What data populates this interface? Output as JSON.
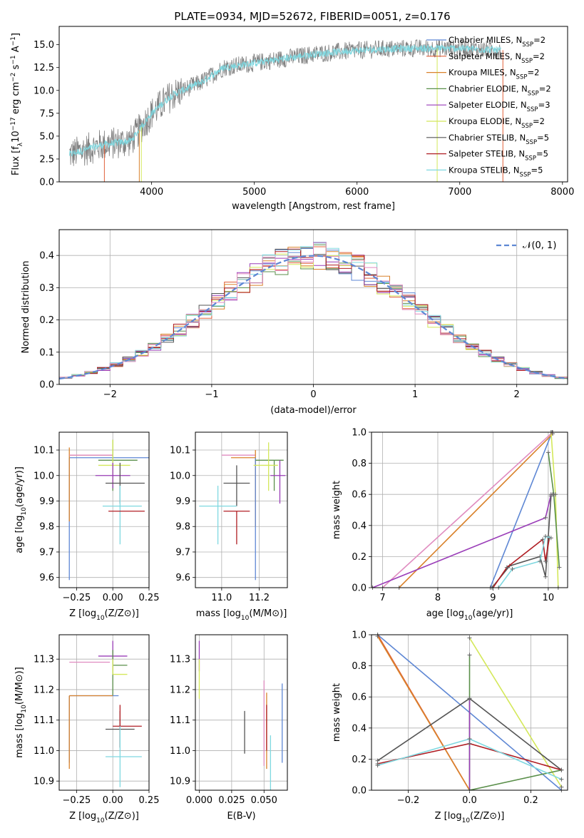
{
  "title": "PLATE=0934, MJD=52672, FIBERID=0051, z=0.176",
  "colors": {
    "Chabrier MILES": "#5e87d4",
    "Salpeter MILES": "#e0603a",
    "Kroupa MILES": "#d9822b",
    "Chabrier ELODIE": "#5a8f4a",
    "Salpeter ELODIE": "#9a3db8",
    "Kroupa ELODIE": "#d4e85a",
    "Chabrier STELIB": "#555555",
    "Salpeter STELIB": "#b01e24",
    "Kroupa STELIB": "#7fd8e0",
    "pink": "#e08cc0",
    "data": "#808080",
    "normal": "#5e87d4"
  },
  "chart_data": [
    {
      "id": "spectrum",
      "type": "line",
      "xlabel": "wavelength [Angstrom, rest frame]",
      "ylabel_parts": [
        "Flux [f",
        "λ",
        "10",
        "−17",
        " erg cm",
        "−2",
        " s",
        "−1",
        " A",
        "−1",
        "]"
      ],
      "xlim": [
        3100,
        8050
      ],
      "ylim": [
        0,
        17
      ],
      "xticks": [
        4000,
        5000,
        6000,
        7000,
        8000
      ],
      "yticks": [
        0.0,
        2.5,
        5.0,
        7.5,
        10.0,
        12.5,
        15.0
      ],
      "ytick_labels": [
        "0.0",
        "2.5",
        "5.0",
        "7.5",
        "10.0",
        "12.5",
        "15.0"
      ],
      "grid": false,
      "legend_position": "upper-right",
      "legend": [
        {
          "name": "Chabrier MILES, N",
          "sub": "SSP",
          "tail": "=2",
          "color": "#5e87d4"
        },
        {
          "name": "Salpeter MILES, N",
          "sub": "SSP",
          "tail": "=2",
          "color": "#e0603a"
        },
        {
          "name": "Kroupa MILES, N",
          "sub": "SSP",
          "tail": "=2",
          "color": "#d9822b"
        },
        {
          "name": "Chabrier ELODIE, N",
          "sub": "SSP",
          "tail": "=2",
          "color": "#5a8f4a"
        },
        {
          "name": "Salpeter ELODIE, N",
          "sub": "SSP",
          "tail": "=3",
          "color": "#9a3db8"
        },
        {
          "name": "Kroupa ELODIE, N",
          "sub": "SSP",
          "tail": "=2",
          "color": "#d4e85a"
        },
        {
          "name": "Chabrier STELIB, N",
          "sub": "SSP",
          "tail": "=5",
          "color": "#555555"
        },
        {
          "name": "Salpeter STELIB, N",
          "sub": "SSP",
          "tail": "=5",
          "color": "#b01e24"
        },
        {
          "name": "Kroupa STELIB, N",
          "sub": "SSP",
          "tail": "=5",
          "color": "#7fd8e0"
        }
      ],
      "continuum": {
        "x": [
          3200,
          3500,
          3800,
          4000,
          4200,
          4500,
          4700,
          5000,
          5300,
          5600,
          5900,
          6200,
          6500,
          6800,
          7000,
          7200,
          7400
        ],
        "y": [
          3.0,
          4.0,
          4.5,
          7.5,
          9.5,
          11.0,
          12.5,
          13.0,
          13.5,
          14.0,
          14.3,
          14.5,
          14.6,
          14.6,
          14.6,
          14.5,
          14.4
        ]
      },
      "model_edges": [
        {
          "color": "#e0603a",
          "x": 3540
        },
        {
          "color": "#d9822b",
          "x": 3880
        },
        {
          "color": "#d4e85a",
          "x": 3900
        },
        {
          "color": "#d4e85a",
          "x": 6780
        },
        {
          "color": "#e0603a",
          "x": 7420
        }
      ]
    },
    {
      "id": "residuals",
      "type": "histogram",
      "xlabel": "(data-model)/error",
      "ylabel": "Normed distribution",
      "xlim": [
        -2.5,
        2.5
      ],
      "ylim": [
        0,
        0.48
      ],
      "xticks": [
        -2,
        -1,
        0,
        1,
        2
      ],
      "xtick_labels": [
        "−2",
        "−1",
        "0",
        "1",
        "2"
      ],
      "yticks": [
        0.0,
        0.1,
        0.2,
        0.3,
        0.4
      ],
      "ytick_labels": [
        "0.0",
        "0.1",
        "0.2",
        "0.3",
        "0.4"
      ],
      "grid": true,
      "legend_position": "upper-right",
      "legend": [
        {
          "name": "𝒩(0, 1)",
          "style": "dashed",
          "color": "#5e87d4"
        }
      ],
      "bin_width": 0.125
    },
    {
      "id": "age_vs_Z",
      "type": "errorbar",
      "xlabel": "Z [log10(Z/Z⊙)]",
      "ylabel": "age [log10(age/yr)]",
      "xlim": [
        -0.37,
        0.25
      ],
      "ylim": [
        9.56,
        10.17
      ],
      "xticks": [
        -0.25,
        0.0,
        0.25
      ],
      "xtick_labels": [
        "−0.25",
        "0.00",
        "0.25"
      ],
      "yticks": [
        9.6,
        9.7,
        9.8,
        9.9,
        10.0,
        10.1
      ],
      "ytick_labels": [
        "9.6",
        "9.7",
        "9.8",
        "9.9",
        "10.0",
        "10.1"
      ],
      "grid": true,
      "points": [
        {
          "color": "#5e87d4",
          "x": -0.3,
          "xerr": [
            0,
            0.6
          ],
          "y": 10.07,
          "yerr": [
            0.48,
            0.0
          ]
        },
        {
          "color": "#d9822b",
          "x": -0.3,
          "xerr": [
            0,
            0.3
          ],
          "y": 10.08,
          "yerr": [
            0.26,
            0.03
          ]
        },
        {
          "color": "#e08cc0",
          "x": -0.3,
          "xerr": [
            0,
            0.3
          ],
          "y": 10.08,
          "yerr": [
            0.0,
            0.0
          ]
        },
        {
          "color": "#5a8f4a",
          "x": 0.0,
          "xerr": [
            0.1,
            0.17
          ],
          "y": 10.06,
          "yerr": [
            0.12,
            0.08
          ]
        },
        {
          "color": "#d4e85a",
          "x": 0.0,
          "xerr": [
            0.1,
            0.12
          ],
          "y": 10.04,
          "yerr": [
            0.08,
            0.1
          ]
        },
        {
          "color": "#9a3db8",
          "x": 0.0,
          "xerr": [
            0.12,
            0.12
          ],
          "y": 10.0,
          "yerr": [
            0.05,
            0.05
          ]
        },
        {
          "color": "#555555",
          "x": 0.05,
          "xerr": [
            0.1,
            0.17
          ],
          "y": 9.97,
          "yerr": [
            0.08,
            0.08
          ]
        },
        {
          "color": "#7fd8e0",
          "x": 0.05,
          "xerr": [
            0.12,
            0.15
          ],
          "y": 9.88,
          "yerr": [
            0.15,
            0.08
          ]
        },
        {
          "color": "#b01e24",
          "x": 0.05,
          "xerr": [
            0.08,
            0.17
          ],
          "y": 9.86,
          "yerr": [
            0.0,
            0.0
          ]
        }
      ]
    },
    {
      "id": "age_vs_mass",
      "type": "errorbar",
      "xlabel": "mass [log10(M/M⊙)]",
      "xlim": [
        10.86,
        11.35
      ],
      "ylim": [
        9.56,
        10.17
      ],
      "xticks": [
        11.0,
        11.2
      ],
      "xtick_labels": [
        "11.0",
        "11.2"
      ],
      "yticks": [
        9.6,
        9.7,
        9.8,
        9.9,
        10.0,
        10.1
      ],
      "ytick_labels": [
        "9.6",
        "9.7",
        "9.8",
        "9.9",
        "10.0",
        "10.1"
      ],
      "grid": true,
      "points": [
        {
          "color": "#e08cc0",
          "x": 11.18,
          "xerr": [
            0.18,
            0.0
          ],
          "y": 10.08,
          "yerr": [
            0.0,
            0.0
          ]
        },
        {
          "color": "#d9822b",
          "x": 11.18,
          "xerr": [
            0.13,
            0.0
          ],
          "y": 10.07,
          "yerr": [
            0.27,
            0.03
          ]
        },
        {
          "color": "#5e87d4",
          "x": 11.18,
          "xerr": [
            0.0,
            0.0
          ],
          "y": 10.07,
          "yerr": [
            0.48,
            0.0
          ]
        },
        {
          "color": "#5a8f4a",
          "x": 11.28,
          "xerr": [
            0.1,
            0.05
          ],
          "y": 10.06,
          "yerr": [
            0.12,
            0.0
          ]
        },
        {
          "color": "#d4e85a",
          "x": 11.25,
          "xerr": [
            0.08,
            0.05
          ],
          "y": 10.04,
          "yerr": [
            0.1,
            0.09
          ]
        },
        {
          "color": "#9a3db8",
          "x": 11.31,
          "xerr": [
            0.05,
            0.03
          ],
          "y": 10.0,
          "yerr": [
            0.11,
            0.06
          ]
        },
        {
          "color": "#555555",
          "x": 11.08,
          "xerr": [
            0.07,
            0.07
          ],
          "y": 9.97,
          "yerr": [
            0.09,
            0.07
          ]
        },
        {
          "color": "#7fd8e0",
          "x": 10.98,
          "xerr": [
            0.1,
            0.1
          ],
          "y": 9.88,
          "yerr": [
            0.15,
            0.08
          ]
        },
        {
          "color": "#b01e24",
          "x": 11.08,
          "xerr": [
            0.07,
            0.07
          ],
          "y": 9.86,
          "yerr": [
            0.13,
            0.0
          ]
        }
      ]
    },
    {
      "id": "weight_vs_age",
      "type": "line",
      "xlabel": "age [log10(age/yr)]",
      "ylabel": "mass weight",
      "xlim": [
        6.8,
        10.35
      ],
      "ylim": [
        0,
        1
      ],
      "xticks": [
        7,
        8,
        9,
        10
      ],
      "xtick_labels": [
        "7",
        "8",
        "9",
        "10"
      ],
      "yticks": [
        0.0,
        0.2,
        0.4,
        0.6,
        0.8,
        1.0
      ],
      "ytick_labels": [
        "0.0",
        "0.2",
        "0.4",
        "0.6",
        "0.8",
        "1.0"
      ],
      "grid": true,
      "series": [
        {
          "color": "#5e87d4",
          "x": [
            8.95,
            10.07
          ],
          "y": [
            0.0,
            1.0
          ]
        },
        {
          "color": "#e08cc0",
          "x": [
            7.0,
            10.08
          ],
          "y": [
            0.0,
            1.0
          ]
        },
        {
          "color": "#d9822b",
          "x": [
            7.3,
            10.08
          ],
          "y": [
            0.0,
            0.99
          ]
        },
        {
          "color": "#9a3db8",
          "x": [
            6.82,
            9.95,
            10.05,
            10.08
          ],
          "y": [
            0.0,
            0.45,
            0.6,
            0.6
          ]
        },
        {
          "color": "#d4e85a",
          "x": [
            10.05,
            10.13,
            10.18
          ],
          "y": [
            1.0,
            0.6,
            0.0
          ]
        },
        {
          "color": "#5a8f4a",
          "x": [
            10.0,
            10.1,
            10.2
          ],
          "y": [
            0.87,
            0.6,
            0.13
          ]
        },
        {
          "color": "#555555",
          "x": [
            8.98,
            9.3,
            9.85,
            9.95,
            10.05
          ],
          "y": [
            0.0,
            0.14,
            0.2,
            0.07,
            0.59
          ]
        },
        {
          "color": "#b01e24",
          "x": [
            9.0,
            9.25,
            9.9,
            9.95,
            10.02
          ],
          "y": [
            0.0,
            0.13,
            0.31,
            0.17,
            0.32
          ]
        },
        {
          "color": "#7fd8e0",
          "x": [
            9.1,
            9.35,
            9.85,
            9.95,
            10.05
          ],
          "y": [
            0.0,
            0.12,
            0.17,
            0.33,
            0.32
          ]
        }
      ]
    },
    {
      "id": "mass_vs_Z",
      "type": "errorbar",
      "xlabel": "Z [log10(Z/Z⊙)]",
      "ylabel": "mass [log10(M/M⊙)]",
      "xlim": [
        -0.37,
        0.25
      ],
      "ylim": [
        10.87,
        11.38
      ],
      "xticks": [
        -0.25,
        0.0,
        0.25
      ],
      "xtick_labels": [
        "−0.25",
        "0.00",
        "0.25"
      ],
      "yticks": [
        10.9,
        11.0,
        11.1,
        11.2,
        11.3
      ],
      "ytick_labels": [
        "10.9",
        "11.0",
        "11.1",
        "11.2",
        "11.3"
      ],
      "grid": true,
      "points": [
        {
          "color": "#9a3db8",
          "x": 0.0,
          "xerr": [
            0.1,
            0.1
          ],
          "y": 11.31,
          "yerr": [
            0.05,
            0.05
          ]
        },
        {
          "color": "#e08cc0",
          "x": -0.3,
          "xerr": [
            0,
            0.28
          ],
          "y": 11.29,
          "yerr": [
            0.0,
            0.0
          ]
        },
        {
          "color": "#5a8f4a",
          "x": 0.0,
          "xerr": [
            0.0,
            0.1
          ],
          "y": 11.28,
          "yerr": [
            0.1,
            0.05
          ]
        },
        {
          "color": "#d4e85a",
          "x": 0.0,
          "xerr": [
            0.0,
            0.1
          ],
          "y": 11.25,
          "yerr": [
            0.0,
            0.05
          ]
        },
        {
          "color": "#5e87d4",
          "x": -0.3,
          "xerr": [
            0,
            0.34
          ],
          "y": 11.18,
          "yerr": [
            0.22,
            0.0
          ]
        },
        {
          "color": "#d9822b",
          "x": -0.3,
          "xerr": [
            0,
            0.3
          ],
          "y": 11.18,
          "yerr": [
            0.24,
            0.0
          ]
        },
        {
          "color": "#555555",
          "x": 0.05,
          "xerr": [
            0.1,
            0.1
          ],
          "y": 11.07,
          "yerr": [
            0.06,
            0.06
          ]
        },
        {
          "color": "#b01e24",
          "x": 0.05,
          "xerr": [
            0.05,
            0.15
          ],
          "y": 11.08,
          "yerr": [
            0.07,
            0.07
          ]
        },
        {
          "color": "#7fd8e0",
          "x": 0.05,
          "xerr": [
            0.1,
            0.15
          ],
          "y": 10.98,
          "yerr": [
            0.1,
            0.1
          ]
        }
      ]
    },
    {
      "id": "mass_vs_EBV",
      "type": "errorbar",
      "xlabel": "E(B-V)",
      "xlim": [
        -0.003,
        0.068
      ],
      "ylim": [
        10.87,
        11.38
      ],
      "xticks": [
        0.0,
        0.025,
        0.05
      ],
      "xtick_labels": [
        "0.000",
        "0.025",
        "0.050"
      ],
      "yticks": [
        10.9,
        11.0,
        11.1,
        11.2,
        11.3
      ],
      "ytick_labels": [
        "10.9",
        "11.0",
        "11.1",
        "11.2",
        "11.3"
      ],
      "grid": true,
      "points": [
        {
          "color": "#9a3db8",
          "x": 0.0,
          "xerr": [
            0,
            0
          ],
          "y": 11.31,
          "yerr": [
            0.05,
            0.05
          ]
        },
        {
          "color": "#d4e85a",
          "x": 0.0,
          "xerr": [
            0,
            0
          ],
          "y": 11.25,
          "yerr": [
            0.08,
            0.05
          ]
        },
        {
          "color": "#555555",
          "x": 0.035,
          "xerr": [
            0,
            0
          ],
          "y": 11.06,
          "yerr": [
            0.07,
            0.07
          ]
        },
        {
          "color": "#e08cc0",
          "x": 0.05,
          "xerr": [
            0,
            0
          ],
          "y": 11.13,
          "yerr": [
            0.18,
            0.1
          ]
        },
        {
          "color": "#d9822b",
          "x": 0.052,
          "xerr": [
            0,
            0
          ],
          "y": 11.07,
          "yerr": [
            0.13,
            0.12
          ]
        },
        {
          "color": "#b01e24",
          "x": 0.052,
          "xerr": [
            0,
            0
          ],
          "y": 11.07,
          "yerr": [
            0.07,
            0.08
          ]
        },
        {
          "color": "#7fd8e0",
          "x": 0.055,
          "xerr": [
            0,
            0
          ],
          "y": 10.97,
          "yerr": [
            0.1,
            0.08
          ]
        },
        {
          "color": "#5e87d4",
          "x": 0.064,
          "xerr": [
            0,
            0
          ],
          "y": 11.09,
          "yerr": [
            0.13,
            0.13
          ]
        }
      ]
    },
    {
      "id": "weight_vs_Z",
      "type": "line",
      "xlabel": "Z [log10(Z/Z⊙)]",
      "ylabel": "mass weight",
      "xlim": [
        -0.32,
        0.32
      ],
      "ylim": [
        0,
        1
      ],
      "xticks": [
        -0.2,
        0.0,
        0.2
      ],
      "xtick_labels": [
        "−0.2",
        "0.0",
        "0.2"
      ],
      "yticks": [
        0.0,
        0.2,
        0.4,
        0.6,
        0.8,
        1.0
      ],
      "ytick_labels": [
        "0.0",
        "0.2",
        "0.4",
        "0.6",
        "0.8",
        "1.0"
      ],
      "grid": true,
      "series": [
        {
          "color": "#5e87d4",
          "x": [
            -0.3,
            0.3
          ],
          "y": [
            1.0,
            0.0
          ]
        },
        {
          "color": "#e0603a",
          "x": [
            -0.3,
            0.0
          ],
          "y": [
            1.0,
            0.0
          ]
        },
        {
          "color": "#d9822b",
          "x": [
            -0.3,
            0.0
          ],
          "y": [
            0.99,
            0.0
          ]
        },
        {
          "color": "#d4e85a",
          "x": [
            0.0,
            0.3
          ],
          "y": [
            0.98,
            0.02
          ]
        },
        {
          "color": "#5a8f4a",
          "x": [
            0.0,
            0.0,
            0.3
          ],
          "y": [
            0.87,
            0.0,
            0.13
          ]
        },
        {
          "color": "#9a3db8",
          "x": [
            0.0,
            0.0
          ],
          "y": [
            0.59,
            0.0
          ]
        },
        {
          "color": "#555555",
          "x": [
            -0.3,
            0.0,
            0.3
          ],
          "y": [
            0.19,
            0.59,
            0.13
          ]
        },
        {
          "color": "#b01e24",
          "x": [
            -0.3,
            0.0,
            0.3
          ],
          "y": [
            0.17,
            0.3,
            0.13
          ]
        },
        {
          "color": "#7fd8e0",
          "x": [
            -0.3,
            0.0,
            0.3
          ],
          "y": [
            0.16,
            0.33,
            0.07
          ]
        }
      ]
    }
  ]
}
